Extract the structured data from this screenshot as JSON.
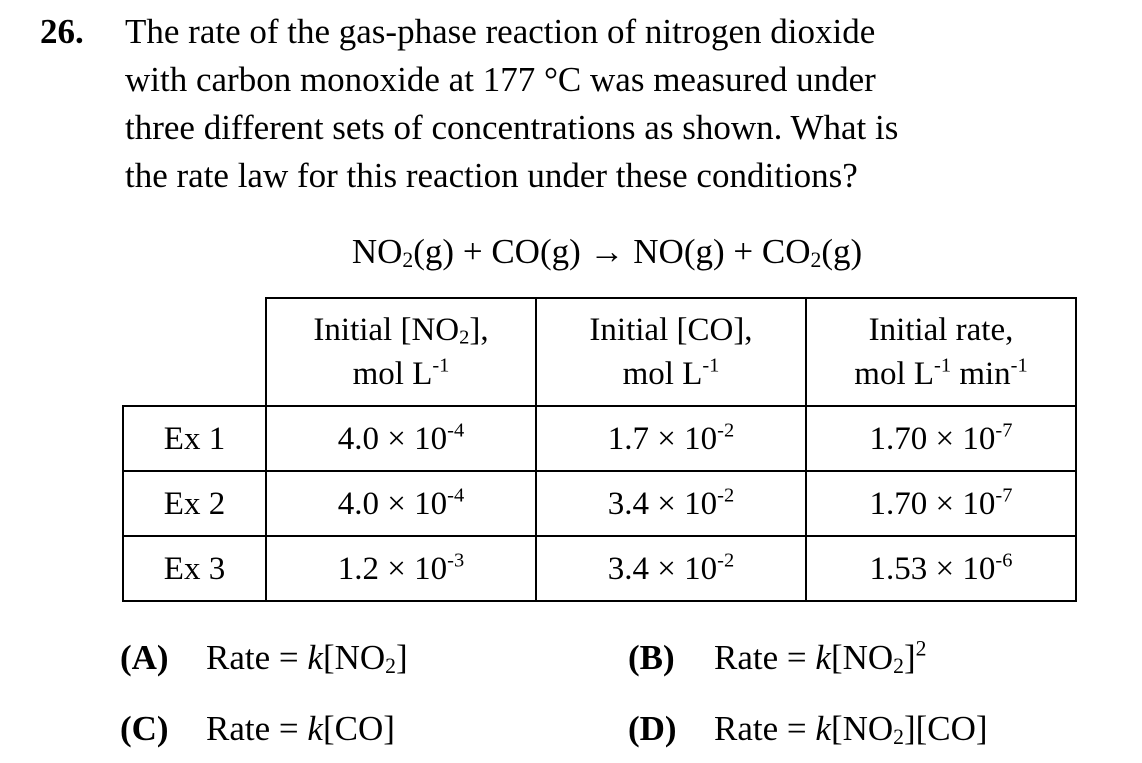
{
  "question": {
    "number": "26.",
    "stem_lines": [
      "The rate of the gas-phase reaction of nitrogen dioxide",
      "with carbon monoxide at 177 °C was measured under",
      "three different sets of concentrations as shown.  What is",
      "the rate law for this reaction under these conditions?"
    ]
  },
  "equation": {
    "no2_base": "NO",
    "no2_sub": "2",
    "no2_state": "(g)",
    "plus1": " + ",
    "co": "CO",
    "co_state": "(g)",
    "arrow": " → ",
    "no": "NO",
    "no_state": "(g)",
    "plus2": " + ",
    "co2_base": "CO",
    "co2_sub": "2",
    "co2_state": "(g)"
  },
  "table": {
    "headers": {
      "no2": {
        "line1_pre": "Initial [NO",
        "line1_sub": "2",
        "line1_post": "],",
        "line2": "mol L",
        "line2_sup": "-1"
      },
      "co": {
        "line1": "Initial [CO],",
        "line2": "mol L",
        "line2_sup": "-1"
      },
      "rate": {
        "line1": "Initial rate,",
        "line2_a": "mol L",
        "line2_sup_a": "-1",
        "line2_b": " min",
        "line2_sup_b": "-1"
      }
    },
    "rows": [
      {
        "label": "Ex 1",
        "no2_mant": "4.0 × 10",
        "no2_exp": "-4",
        "co_mant": "1.7 × 10",
        "co_exp": "-2",
        "rate_mant": "1.70 × 10",
        "rate_exp": "-7"
      },
      {
        "label": "Ex 2",
        "no2_mant": "4.0 × 10",
        "no2_exp": "-4",
        "co_mant": "3.4 × 10",
        "co_exp": "-2",
        "rate_mant": "1.70 × 10",
        "rate_exp": "-7"
      },
      {
        "label": "Ex 3",
        "no2_mant": "1.2 × 10",
        "no2_exp": "-3",
        "co_mant": "3.4 × 10",
        "co_exp": "-2",
        "rate_mant": "1.53 × 10",
        "rate_exp": "-6"
      }
    ]
  },
  "choices": {
    "a": {
      "letter": "(A)",
      "prefix": "Rate = ",
      "k": "k",
      "body_pre": "[NO",
      "body_sub": "2",
      "body_post": "]"
    },
    "b": {
      "letter": "(B)",
      "prefix": "Rate = ",
      "k": "k",
      "body_pre": "[NO",
      "body_sub": "2",
      "body_post": "]",
      "sup": "2"
    },
    "c": {
      "letter": "(C)",
      "prefix": "Rate = ",
      "k": "k",
      "body": "[CO]"
    },
    "d": {
      "letter": "(D)",
      "prefix": "Rate = ",
      "k": "k",
      "body_pre": "[NO",
      "body_sub": "2",
      "body_post": "][CO]"
    }
  }
}
